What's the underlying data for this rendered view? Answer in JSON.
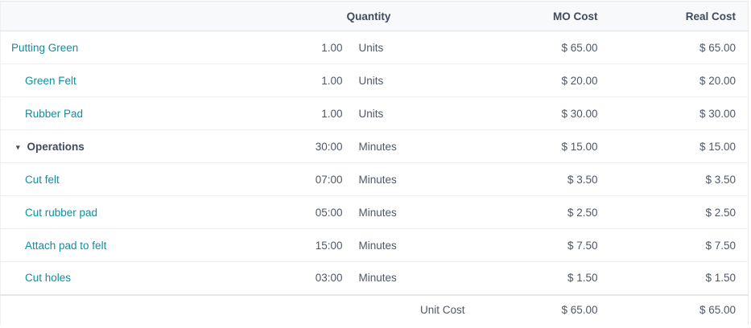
{
  "colors": {
    "link_teal": "#0f8e9f",
    "heading_text": "#404b5b",
    "body_text": "#4e5867",
    "header_bg": "#f8f9fb",
    "row_border": "#eceef1"
  },
  "table": {
    "headers": {
      "name": "",
      "quantity": "Quantity",
      "mo_cost": "MO Cost",
      "real_cost": "Real Cost"
    },
    "rows": [
      {
        "name": "Putting Green",
        "kind": "product",
        "qty": "1.00",
        "unit": "Units",
        "mo_cost": "$ 65.00",
        "real_cost": "$ 65.00"
      },
      {
        "name": "Green Felt",
        "kind": "component",
        "qty": "1.00",
        "unit": "Units",
        "mo_cost": "$ 20.00",
        "real_cost": "$ 20.00"
      },
      {
        "name": "Rubber Pad",
        "kind": "component",
        "qty": "1.00",
        "unit": "Units",
        "mo_cost": "$ 30.00",
        "real_cost": "$ 30.00"
      },
      {
        "name": "Operations",
        "kind": "group",
        "caret": "▾",
        "qty": "30:00",
        "unit": "Minutes",
        "mo_cost": "$ 15.00",
        "real_cost": "$ 15.00"
      },
      {
        "name": "Cut felt",
        "kind": "operation",
        "qty": "07:00",
        "unit": "Minutes",
        "mo_cost": "$ 3.50",
        "real_cost": "$ 3.50"
      },
      {
        "name": "Cut rubber pad",
        "kind": "operation",
        "qty": "05:00",
        "unit": "Minutes",
        "mo_cost": "$ 2.50",
        "real_cost": "$ 2.50"
      },
      {
        "name": "Attach pad to felt",
        "kind": "operation",
        "qty": "15:00",
        "unit": "Minutes",
        "mo_cost": "$ 7.50",
        "real_cost": "$ 7.50"
      },
      {
        "name": "Cut holes",
        "kind": "operation",
        "qty": "03:00",
        "unit": "Minutes",
        "mo_cost": "$ 1.50",
        "real_cost": "$ 1.50"
      }
    ],
    "footer": {
      "label": "Unit Cost",
      "mo_cost": "$ 65.00",
      "real_cost": "$ 65.00"
    }
  }
}
